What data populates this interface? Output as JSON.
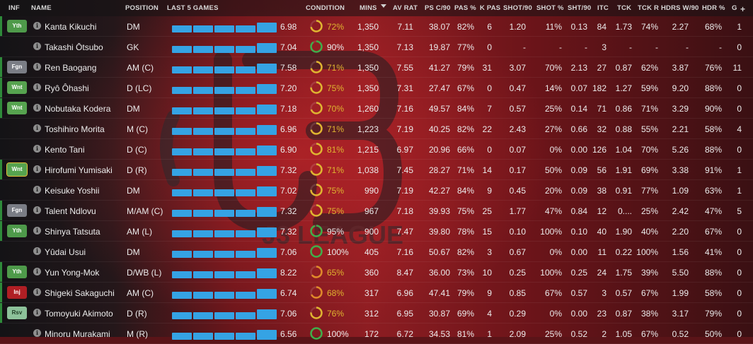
{
  "columns": {
    "inf": "INF",
    "name": "NAME",
    "position": "POSITION",
    "last5": "LAST 5 GAMES",
    "condition": "CONDITION",
    "mins": "MINS",
    "av_rat": "AV RAT",
    "ps_c90": "PS C/90",
    "pas_pct": "PAS %",
    "k_pas": "K PAS",
    "shot90": "SHOT/90",
    "shot_pct": "SHOT %",
    "sht90": "SHT/90",
    "itc": "ITC",
    "tck": "TCK",
    "tck_r": "TCK R",
    "hdrs_w90": "HDRS W/90",
    "hdr_pct": "HDR %",
    "g": "G",
    "add": "+"
  },
  "colors": {
    "bar": "#35a3e4",
    "cond_good": "#3fae4a",
    "cond_mid": "#e0b530",
    "cond_low": "#e08a2a"
  },
  "players": [
    {
      "badge": "Yth",
      "badge_type": "yth",
      "name": "Kanta Kikuchi",
      "pos": "DM",
      "last5": [
        0.55,
        0.55,
        0.55,
        0.55,
        0.8
      ],
      "rating": "6.98",
      "cond": 0.72,
      "cond_text": "72%",
      "mins": "1,350",
      "av_rat": "7.11",
      "ps_c90": "38.07",
      "pas_pct": "82%",
      "k_pas": "6",
      "shot90": "1.20",
      "shot_pct": "11%",
      "sht90": "0.13",
      "itc": "84",
      "tck": "1.73",
      "tck_r": "74%",
      "hdrs": "2.27",
      "hdr_pct": "68%",
      "g": "1"
    },
    {
      "badge": "",
      "badge_type": "none",
      "name": "Takashi Ōtsubo",
      "pos": "GK",
      "last5": [
        0.55,
        0.55,
        0.55,
        0.55,
        0.8
      ],
      "rating": "7.04",
      "cond": 0.9,
      "cond_text": "90%",
      "mins": "1,350",
      "av_rat": "7.13",
      "ps_c90": "19.87",
      "pas_pct": "77%",
      "k_pas": "0",
      "shot90": "-",
      "shot_pct": "-",
      "sht90": "-",
      "itc": "3",
      "tck": "-",
      "tck_r": "-",
      "hdrs": "-",
      "hdr_pct": "-",
      "g": "0"
    },
    {
      "badge": "Fgn",
      "badge_type": "fgn",
      "name": "Ren Baogang",
      "pos": "AM (C)",
      "last5": [
        0.55,
        0.55,
        0.55,
        0.55,
        0.8
      ],
      "rating": "7.58",
      "cond": 0.71,
      "cond_text": "71%",
      "mins": "1,350",
      "av_rat": "7.55",
      "ps_c90": "41.27",
      "pas_pct": "79%",
      "k_pas": "31",
      "shot90": "3.07",
      "shot_pct": "70%",
      "sht90": "2.13",
      "itc": "27",
      "tck": "0.87",
      "tck_r": "62%",
      "hdrs": "3.87",
      "hdr_pct": "76%",
      "g": "11"
    },
    {
      "badge": "Wnt",
      "badge_type": "wnt",
      "name": "Ryô Ôhashi",
      "pos": "D (LC)",
      "last5": [
        0.55,
        0.55,
        0.55,
        0.55,
        0.8
      ],
      "rating": "7.20",
      "cond": 0.75,
      "cond_text": "75%",
      "mins": "1,350",
      "av_rat": "7.31",
      "ps_c90": "27.47",
      "pas_pct": "67%",
      "k_pas": "0",
      "shot90": "0.47",
      "shot_pct": "14%",
      "sht90": "0.07",
      "itc": "182",
      "tck": "1.27",
      "tck_r": "59%",
      "hdrs": "9.20",
      "hdr_pct": "88%",
      "g": "0"
    },
    {
      "badge": "Wnt",
      "badge_type": "wnt",
      "name": "Nobutaka Kodera",
      "pos": "DM",
      "last5": [
        0.55,
        0.55,
        0.55,
        0.55,
        0.8
      ],
      "rating": "7.18",
      "cond": 0.7,
      "cond_text": "70%",
      "mins": "1,260",
      "av_rat": "7.16",
      "ps_c90": "49.57",
      "pas_pct": "84%",
      "k_pas": "7",
      "shot90": "0.57",
      "shot_pct": "25%",
      "sht90": "0.14",
      "itc": "71",
      "tck": "0.86",
      "tck_r": "71%",
      "hdrs": "3.29",
      "hdr_pct": "90%",
      "g": "0"
    },
    {
      "badge": "",
      "badge_type": "none",
      "name": "Toshihiro Morita",
      "pos": "M (C)",
      "last5": [
        0.55,
        0.55,
        0.55,
        0.55,
        0.8
      ],
      "rating": "6.96",
      "cond": 0.71,
      "cond_text": "71%",
      "mins": "1,223",
      "av_rat": "7.19",
      "ps_c90": "40.25",
      "pas_pct": "82%",
      "k_pas": "22",
      "shot90": "2.43",
      "shot_pct": "27%",
      "sht90": "0.66",
      "itc": "32",
      "tck": "0.88",
      "tck_r": "55%",
      "hdrs": "2.21",
      "hdr_pct": "58%",
      "g": "4"
    },
    {
      "badge": "",
      "badge_type": "none",
      "name": "Kento Tani",
      "pos": "D (C)",
      "last5": [
        0.55,
        0.55,
        0.55,
        0.55,
        0.8
      ],
      "rating": "6.90",
      "cond": 0.81,
      "cond_text": "81%",
      "mins": "1,215",
      "av_rat": "6.97",
      "ps_c90": "20.96",
      "pas_pct": "66%",
      "k_pas": "0",
      "shot90": "0.07",
      "shot_pct": "0%",
      "sht90": "0.00",
      "itc": "126",
      "tck": "1.04",
      "tck_r": "70%",
      "hdrs": "5.26",
      "hdr_pct": "88%",
      "g": "0"
    },
    {
      "badge": "Wnt",
      "badge_type": "wntb",
      "name": "Hirofumi Yumisaki",
      "pos": "D (R)",
      "last5": [
        0.55,
        0.55,
        0.55,
        0.55,
        0.8
      ],
      "rating": "7.32",
      "cond": 0.71,
      "cond_text": "71%",
      "mins": "1,038",
      "av_rat": "7.45",
      "ps_c90": "28.27",
      "pas_pct": "71%",
      "k_pas": "14",
      "shot90": "0.17",
      "shot_pct": "50%",
      "sht90": "0.09",
      "itc": "56",
      "tck": "1.91",
      "tck_r": "69%",
      "hdrs": "3.38",
      "hdr_pct": "91%",
      "g": "1"
    },
    {
      "badge": "",
      "badge_type": "none",
      "name": "Keisuke Yoshii",
      "pos": "DM",
      "last5": [
        0.55,
        0.55,
        0.55,
        0.55,
        0.8
      ],
      "rating": "7.02",
      "cond": 0.75,
      "cond_text": "75%",
      "mins": "990",
      "av_rat": "7.19",
      "ps_c90": "42.27",
      "pas_pct": "84%",
      "k_pas": "9",
      "shot90": "0.45",
      "shot_pct": "20%",
      "sht90": "0.09",
      "itc": "38",
      "tck": "0.91",
      "tck_r": "77%",
      "hdrs": "1.09",
      "hdr_pct": "63%",
      "g": "1"
    },
    {
      "badge": "Fgn",
      "badge_type": "fgn",
      "name": "Talent Ndlovu",
      "pos": "M/AM (C)",
      "last5": [
        0.55,
        0.55,
        0.55,
        0.55,
        0.8
      ],
      "rating": "7.32",
      "cond": 0.75,
      "cond_text": "75%",
      "mins": "967",
      "av_rat": "7.18",
      "ps_c90": "39.93",
      "pas_pct": "75%",
      "k_pas": "25",
      "shot90": "1.77",
      "shot_pct": "47%",
      "sht90": "0.84",
      "itc": "12",
      "tck": "0....",
      "tck_r": "25%",
      "hdrs": "2.42",
      "hdr_pct": "47%",
      "g": "5"
    },
    {
      "badge": "Yth",
      "badge_type": "yth",
      "name": "Shinya Tatsuta",
      "pos": "AM (L)",
      "last5": [
        0.55,
        0.55,
        0.55,
        0.55,
        0.8
      ],
      "rating": "7.32",
      "cond": 0.95,
      "cond_text": "95%",
      "mins": "900",
      "av_rat": "7.47",
      "ps_c90": "39.80",
      "pas_pct": "78%",
      "k_pas": "15",
      "shot90": "0.10",
      "shot_pct": "100%",
      "sht90": "0.10",
      "itc": "40",
      "tck": "1.90",
      "tck_r": "40%",
      "hdrs": "2.20",
      "hdr_pct": "67%",
      "g": "0"
    },
    {
      "badge": "",
      "badge_type": "none",
      "name": "Yûdai Usui",
      "pos": "DM",
      "last5": [
        0.55,
        0.55,
        0.55,
        0.55,
        0.8
      ],
      "rating": "7.06",
      "cond": 1.0,
      "cond_text": "100%",
      "mins": "405",
      "av_rat": "7.16",
      "ps_c90": "50.67",
      "pas_pct": "82%",
      "k_pas": "3",
      "shot90": "0.67",
      "shot_pct": "0%",
      "sht90": "0.00",
      "itc": "11",
      "tck": "0.22",
      "tck_r": "100%",
      "hdrs": "1.56",
      "hdr_pct": "41%",
      "g": "0"
    },
    {
      "badge": "Yth",
      "badge_type": "yth",
      "name": "Yun Yong-Mok",
      "pos": "D/WB (L)",
      "last5": [
        0.55,
        0.55,
        0.55,
        0.55,
        0.8
      ],
      "rating": "8.22",
      "cond": 0.65,
      "cond_text": "65%",
      "mins": "360",
      "av_rat": "8.47",
      "ps_c90": "36.00",
      "pas_pct": "73%",
      "k_pas": "10",
      "shot90": "0.25",
      "shot_pct": "100%",
      "sht90": "0.25",
      "itc": "24",
      "tck": "1.75",
      "tck_r": "39%",
      "hdrs": "5.50",
      "hdr_pct": "88%",
      "g": "0"
    },
    {
      "badge": "Inj",
      "badge_type": "inj",
      "name": "Shigeki Sakaguchi",
      "pos": "AM (C)",
      "last5": [
        0.55,
        0.55,
        0.55,
        0.55,
        0.8
      ],
      "rating": "6.74",
      "cond": 0.68,
      "cond_text": "68%",
      "mins": "317",
      "av_rat": "6.96",
      "ps_c90": "47.41",
      "pas_pct": "79%",
      "k_pas": "9",
      "shot90": "0.85",
      "shot_pct": "67%",
      "sht90": "0.57",
      "itc": "3",
      "tck": "0.57",
      "tck_r": "67%",
      "hdrs": "1.99",
      "hdr_pct": "58%",
      "g": "0"
    },
    {
      "badge": "Rsv",
      "badge_type": "rsv",
      "name": "Tomoyuki Akimoto",
      "pos": "D (R)",
      "last5": [
        0.55,
        0.55,
        0.55,
        0.55,
        0.8
      ],
      "rating": "7.06",
      "cond": 0.76,
      "cond_text": "76%",
      "mins": "312",
      "av_rat": "6.95",
      "ps_c90": "30.87",
      "pas_pct": "69%",
      "k_pas": "4",
      "shot90": "0.29",
      "shot_pct": "0%",
      "sht90": "0.00",
      "itc": "23",
      "tck": "0.87",
      "tck_r": "38%",
      "hdrs": "3.17",
      "hdr_pct": "79%",
      "g": "0"
    },
    {
      "badge": "",
      "badge_type": "none",
      "name": "Minoru Murakami",
      "pos": "M (R)",
      "last5": [
        0.55,
        0.55,
        0.55,
        0.55,
        0.8
      ],
      "rating": "6.56",
      "cond": 1.0,
      "cond_text": "100%",
      "mins": "172",
      "av_rat": "6.72",
      "ps_c90": "34.53",
      "pas_pct": "81%",
      "k_pas": "1",
      "shot90": "2.09",
      "shot_pct": "25%",
      "sht90": "0.52",
      "itc": "2",
      "tck": "1.05",
      "tck_r": "67%",
      "hdrs": "0.52",
      "hdr_pct": "50%",
      "g": "0"
    }
  ]
}
